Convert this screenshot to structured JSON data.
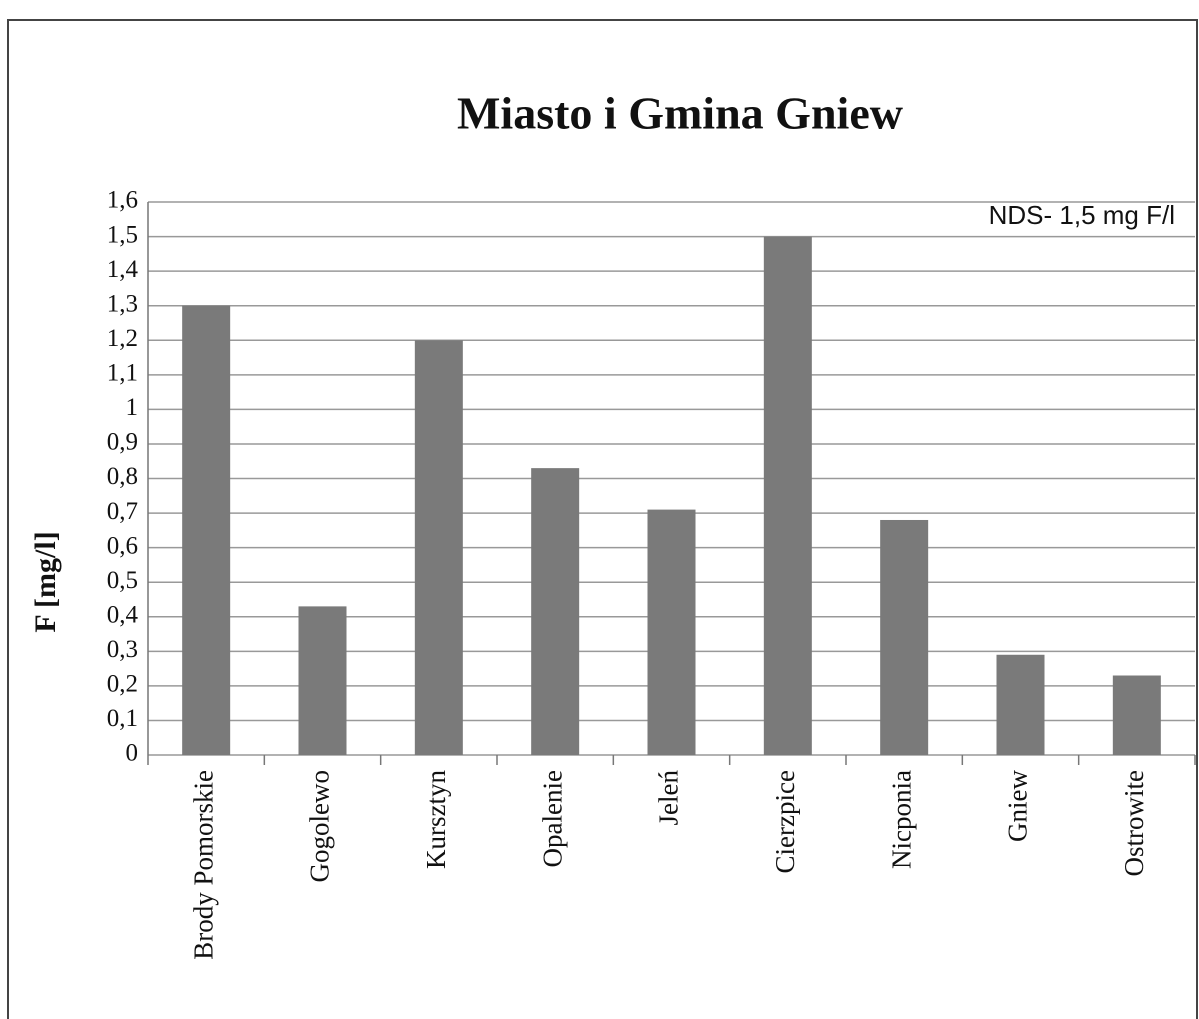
{
  "chart_data": {
    "type": "bar",
    "title": "Miasto i Gmina Gniew",
    "y_label": "F [mg/l]",
    "annotation": "NDS- 1,5 mg F/l",
    "categories": [
      "Brody Pomorskie",
      "Gogolewo",
      "Kursztyn",
      "Opalenie",
      "Jeleń",
      "Cierzpice",
      "Nicponia",
      "Gniew",
      "Ostrowite"
    ],
    "values": [
      1.3,
      0.43,
      1.2,
      0.83,
      0.71,
      1.5,
      0.68,
      0.29,
      0.23
    ],
    "color": "#7a7a7a",
    "ylim": [
      0,
      1.6
    ],
    "yticks": [
      0,
      {
        "value": 0.1,
        "label": "0,1"
      },
      {
        "value": 0.2,
        "label": "0,2"
      },
      {
        "value": 0.3,
        "label": "0,3"
      },
      {
        "value": 0.4,
        "label": "0,4"
      },
      {
        "value": 0.5,
        "label": "0,5"
      },
      {
        "value": 0.6,
        "label": "0,6"
      },
      {
        "value": 0.7,
        "label": "0,7"
      },
      {
        "value": 0.8,
        "label": "0,8"
      },
      {
        "value": 0.9,
        "label": "0,9"
      },
      1,
      {
        "value": 1.1,
        "label": "1,1"
      },
      {
        "value": 1.2,
        "label": "1,2"
      },
      {
        "value": 1.3,
        "label": "1,3"
      },
      {
        "value": 1.4,
        "label": "1,4"
      },
      {
        "value": 1.5,
        "label": "1,5"
      },
      {
        "value": 1.6,
        "label": "1,6"
      }
    ],
    "grid": true
  }
}
